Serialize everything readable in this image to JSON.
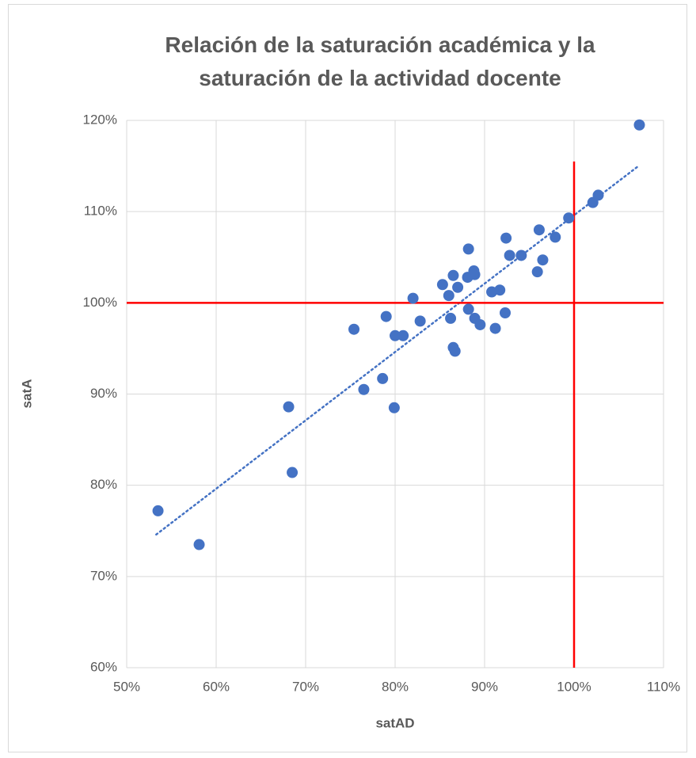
{
  "chart_data": {
    "type": "scatter",
    "title": "Relación de la saturación académica y la saturación de la actividad docente",
    "x_label": "satAD",
    "y_label": "satA",
    "color": "#4472c4",
    "x": [
      53.5,
      58.1,
      68.1,
      68.5,
      75.4,
      76.5,
      78.6,
      79.0,
      79.9,
      80.0,
      80.9,
      82.0,
      82.8,
      85.3,
      86.0,
      86.2,
      86.5,
      86.5,
      86.7,
      87.0,
      88.1,
      88.2,
      88.2,
      88.8,
      88.9,
      88.9,
      89.5,
      90.8,
      91.2,
      91.7,
      92.3,
      92.4,
      92.8,
      94.1,
      95.9,
      96.1,
      96.5,
      97.9,
      99.4,
      102.1,
      102.7,
      107.3
    ],
    "y": [
      77.2,
      73.5,
      88.6,
      81.4,
      97.1,
      90.5,
      91.7,
      98.5,
      88.5,
      96.4,
      96.4,
      100.5,
      98.0,
      102.0,
      100.8,
      98.3,
      103.0,
      95.1,
      94.7,
      101.7,
      102.8,
      105.9,
      99.3,
      103.5,
      103.1,
      98.3,
      97.6,
      101.2,
      97.2,
      101.4,
      98.9,
      107.1,
      105.2,
      105.2,
      103.4,
      108.0,
      104.7,
      107.2,
      109.3,
      111.0,
      111.8,
      119.5
    ],
    "trendline": {
      "x": [
        53.3,
        107.2
      ],
      "y": [
        74.6,
        115.0
      ],
      "color": "#4472c4"
    },
    "reference_lines": {
      "x": 100,
      "x_line_ylim": [
        60,
        115.5
      ],
      "y": 100,
      "color": "#ff0000"
    },
    "xlim": [
      50,
      110
    ],
    "xticks": [
      {
        "value": 50,
        "label": "50%"
      },
      {
        "value": 60,
        "label": "60%"
      },
      {
        "value": 70,
        "label": "70%"
      },
      {
        "value": 80,
        "label": "80%"
      },
      {
        "value": 90,
        "label": "90%"
      },
      {
        "value": 100,
        "label": "100%"
      },
      {
        "value": 110,
        "label": "110%"
      }
    ],
    "ylim": [
      60,
      120
    ],
    "yticks": [
      {
        "value": 60,
        "label": "60%"
      },
      {
        "value": 70,
        "label": "70%"
      },
      {
        "value": 80,
        "label": "80%"
      },
      {
        "value": 90,
        "label": "90%"
      },
      {
        "value": 100,
        "label": "100%"
      },
      {
        "value": 110,
        "label": "110%"
      },
      {
        "value": 120,
        "label": "120%"
      }
    ],
    "grid": true
  }
}
